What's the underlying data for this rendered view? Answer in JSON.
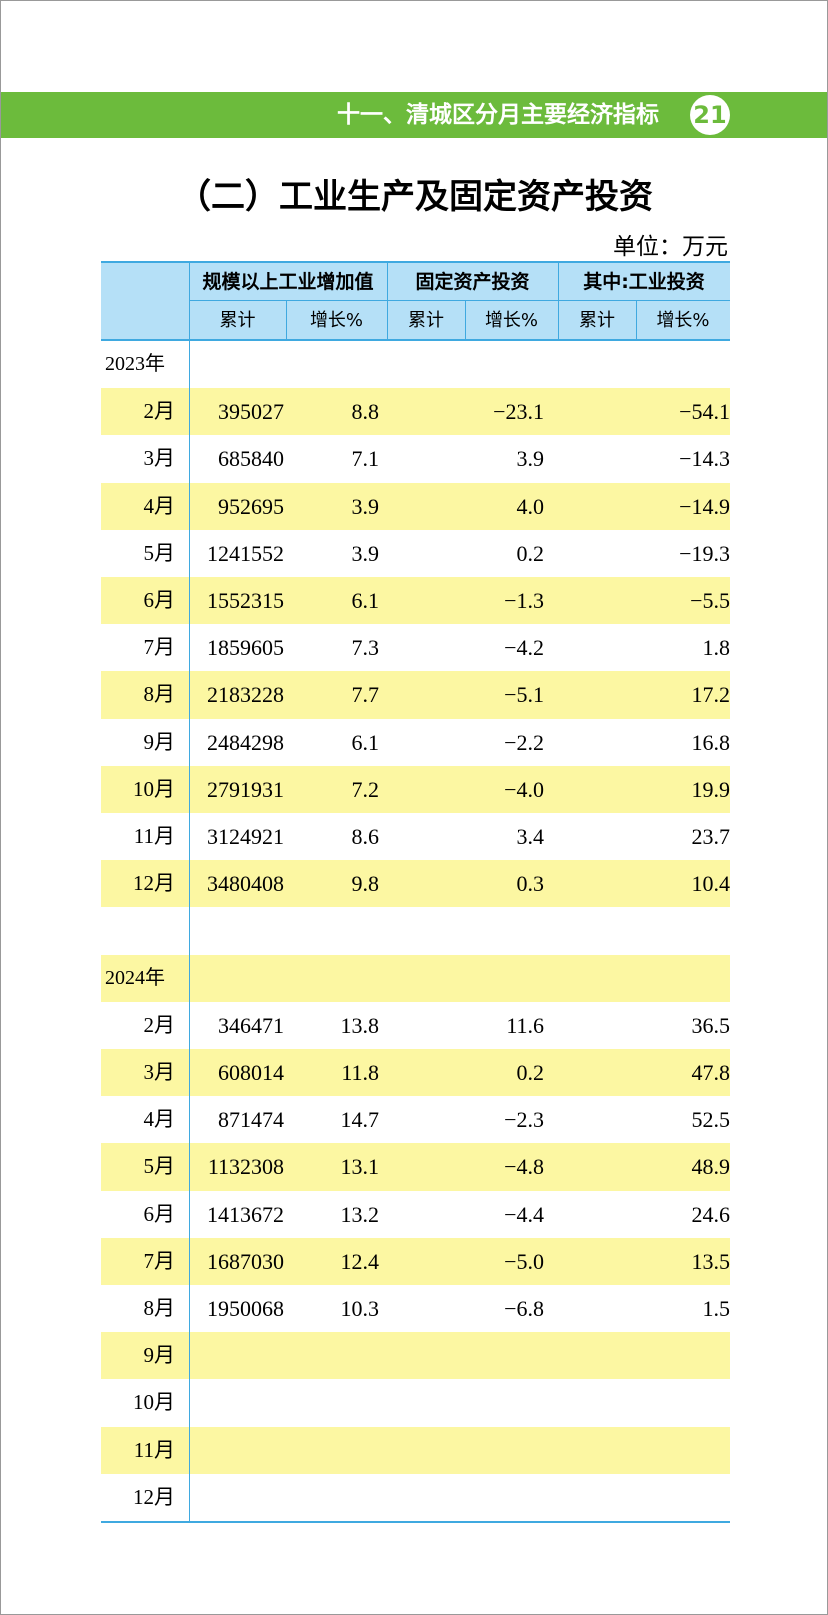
{
  "header": {
    "title": "十一、清城区分月主要经济指标",
    "page": "21"
  },
  "table": {
    "title": "（二）工业生产及固定资产投资",
    "unit": "单位：万元",
    "groups": [
      "规模以上工业增加值",
      "固定资产投资",
      "其中:工业投资"
    ],
    "subheaders": [
      "累计",
      "增长%",
      "累计",
      "增长%",
      "累计",
      "增长%"
    ],
    "sections": [
      {
        "year": "2023年",
        "rows": [
          [
            "2月",
            "395027",
            "8.8",
            "−23.1",
            "−54.1"
          ],
          [
            "3月",
            "685840",
            "7.1",
            "3.9",
            "−14.3"
          ],
          [
            "4月",
            "952695",
            "3.9",
            "4.0",
            "−14.9"
          ],
          [
            "5月",
            "1241552",
            "3.9",
            "0.2",
            "−19.3"
          ],
          [
            "6月",
            "1552315",
            "6.1",
            "−1.3",
            "−5.5"
          ],
          [
            "7月",
            "1859605",
            "7.3",
            "−4.2",
            "1.8"
          ],
          [
            "8月",
            "2183228",
            "7.7",
            "−5.1",
            "17.2"
          ],
          [
            "9月",
            "2484298",
            "6.1",
            "−2.2",
            "16.8"
          ],
          [
            "10月",
            "2791931",
            "7.2",
            "−4.0",
            "19.9"
          ],
          [
            "11月",
            "3124921",
            "8.6",
            "3.4",
            "23.7"
          ],
          [
            "12月",
            "3480408",
            "9.8",
            "0.3",
            "10.4"
          ]
        ]
      },
      {
        "year": "2024年",
        "rows": [
          [
            "2月",
            "346471",
            "13.8",
            "11.6",
            "36.5"
          ],
          [
            "3月",
            "608014",
            "11.8",
            "0.2",
            "47.8"
          ],
          [
            "4月",
            "871474",
            "14.7",
            "−2.3",
            "52.5"
          ],
          [
            "5月",
            "1132308",
            "13.1",
            "−4.8",
            "48.9"
          ],
          [
            "6月",
            "1413672",
            "13.2",
            "−4.4",
            "24.6"
          ],
          [
            "7月",
            "1687030",
            "12.4",
            "−5.0",
            "13.5"
          ],
          [
            "8月",
            "1950068",
            "10.3",
            "−6.8",
            "1.5"
          ],
          [
            "9月"
          ],
          [
            "10月"
          ],
          [
            "11月"
          ],
          [
            "12月"
          ]
        ]
      }
    ]
  }
}
